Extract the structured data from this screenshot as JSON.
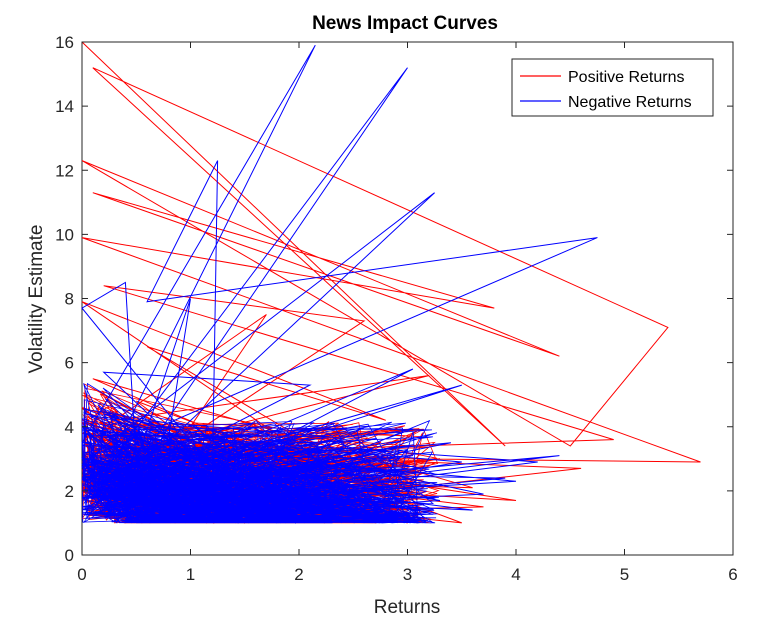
{
  "chart_data": {
    "type": "line",
    "title": "News Impact Curves",
    "xlabel": "Returns",
    "ylabel": "Volatility Estimate",
    "xlim": [
      0,
      6
    ],
    "ylim": [
      0,
      16
    ],
    "xticks": [
      "0",
      "1",
      "2",
      "3",
      "4",
      "5",
      "6"
    ],
    "yticks": [
      "0",
      "2",
      "4",
      "6",
      "8",
      "10",
      "12",
      "14",
      "16"
    ],
    "grid": false,
    "legend_position": "top-right",
    "series": [
      {
        "name": "Positive Returns",
        "color": "#ff0000",
        "points": [
          [
            0.0,
            16.0
          ],
          [
            3.9,
            3.4
          ],
          [
            0.1,
            15.2
          ],
          [
            5.4,
            7.1
          ],
          [
            4.5,
            3.4
          ],
          [
            0.0,
            12.3
          ],
          [
            4.4,
            6.2
          ],
          [
            0.1,
            11.3
          ],
          [
            3.8,
            7.7
          ],
          [
            0.0,
            9.9
          ],
          [
            5.7,
            2.9
          ],
          [
            0.3,
            3.1
          ],
          [
            4.9,
            3.6
          ],
          [
            0.2,
            8.4
          ],
          [
            2.6,
            7.3
          ],
          [
            0.9,
            3.5
          ],
          [
            1.7,
            7.5
          ],
          [
            0.3,
            4.2
          ],
          [
            3.2,
            5.6
          ],
          [
            0.4,
            3.2
          ],
          [
            3.0,
            1.0
          ],
          [
            0.0,
            7.9
          ],
          [
            2.8,
            4.2
          ],
          [
            0.6,
            6.5
          ],
          [
            2.2,
            3.3
          ],
          [
            0.2,
            2.2
          ],
          [
            3.5,
            1.0
          ],
          [
            0.5,
            4.8
          ],
          [
            1.9,
            1.3
          ],
          [
            0.0,
            3.8
          ],
          [
            4.0,
            1.7
          ],
          [
            0.4,
            2.4
          ],
          [
            3.6,
            2.1
          ],
          [
            0.1,
            5.5
          ],
          [
            2.9,
            1.4
          ],
          [
            0.7,
            3.6
          ],
          [
            2.4,
            2.0
          ],
          [
            0.3,
            1.6
          ],
          [
            1.6,
            4.1
          ],
          [
            0.0,
            2.9
          ],
          [
            3.1,
            2.6
          ],
          [
            0.8,
            1.5
          ],
          [
            2.0,
            3.6
          ],
          [
            0.2,
            1.2
          ],
          [
            3.7,
            1.5
          ],
          [
            0.6,
            2.8
          ],
          [
            1.4,
            1.1
          ],
          [
            0.0,
            4.6
          ],
          [
            2.6,
            1.8
          ],
          [
            0.5,
            1.3
          ],
          [
            3.3,
            3.0
          ],
          [
            0.1,
            1.9
          ],
          [
            1.2,
            2.5
          ],
          [
            0.4,
            1.1
          ],
          [
            4.6,
            2.7
          ],
          [
            0.2,
            3.3
          ]
        ]
      },
      {
        "name": "Negative Returns",
        "color": "#0000ff",
        "points": [
          [
            0.0,
            3.5
          ],
          [
            2.15,
            15.9
          ],
          [
            0.2,
            2.6
          ],
          [
            3.0,
            15.2
          ],
          [
            0.4,
            2.3
          ],
          [
            3.25,
            11.3
          ],
          [
            0.1,
            3.1
          ],
          [
            4.75,
            9.9
          ],
          [
            0.6,
            7.9
          ],
          [
            1.25,
            12.3
          ],
          [
            1.2,
            2.1
          ],
          [
            0.8,
            3.7
          ],
          [
            1.0,
            8.0
          ],
          [
            0.5,
            2.9
          ],
          [
            0.4,
            8.5
          ],
          [
            0.0,
            7.7
          ],
          [
            1.4,
            1.9
          ],
          [
            0.2,
            5.7
          ],
          [
            2.1,
            5.3
          ],
          [
            0.3,
            2.2
          ],
          [
            3.5,
            5.3
          ],
          [
            0.1,
            1.6
          ],
          [
            3.05,
            5.8
          ],
          [
            0.5,
            1.3
          ],
          [
            3.5,
            2.9
          ],
          [
            0.0,
            3.9
          ],
          [
            4.2,
            2.9
          ],
          [
            0.2,
            1.2
          ],
          [
            3.9,
            2.4
          ],
          [
            0.7,
            2.6
          ],
          [
            2.5,
            1.1
          ],
          [
            0.1,
            2.9
          ],
          [
            3.6,
            1.4
          ],
          [
            0.4,
            1.9
          ],
          [
            2.8,
            3.2
          ],
          [
            0.0,
            1.5
          ],
          [
            4.0,
            2.3
          ],
          [
            0.3,
            3.4
          ],
          [
            3.3,
            1.7
          ],
          [
            0.6,
            1.1
          ],
          [
            2.2,
            2.8
          ],
          [
            0.1,
            1.3
          ],
          [
            3.7,
            1.9
          ],
          [
            0.2,
            4.4
          ],
          [
            2.9,
            1.6
          ],
          [
            0.5,
            2.1
          ],
          [
            1.8,
            1.0
          ],
          [
            0.0,
            2.4
          ],
          [
            3.4,
            3.5
          ],
          [
            0.3,
            1.4
          ],
          [
            4.4,
            3.1
          ],
          [
            0.1,
            1.8
          ],
          [
            2.4,
            2.2
          ],
          [
            0.6,
            1.2
          ],
          [
            3.0,
            2.7
          ],
          [
            0.0,
            2.0
          ]
        ]
      }
    ]
  }
}
